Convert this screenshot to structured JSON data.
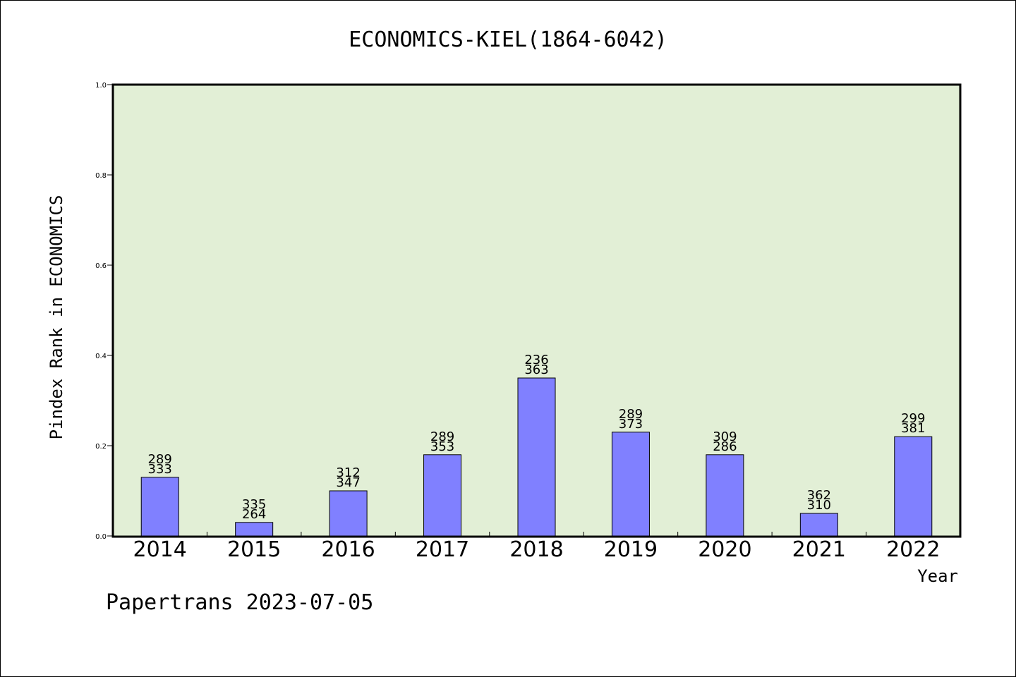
{
  "chart_data": {
    "type": "bar",
    "title": "ECONOMICS-KIEL(1864-6042)",
    "xlabel": "Year",
    "ylabel": "Pindex Rank in ECONOMICS",
    "ylim": [
      0,
      1.0
    ],
    "yticks": [
      "0.0",
      "0.2",
      "0.4",
      "0.6",
      "0.8",
      "1.0"
    ],
    "categories": [
      "2014",
      "2015",
      "2016",
      "2017",
      "2018",
      "2019",
      "2020",
      "2021",
      "2022"
    ],
    "values": [
      0.13,
      0.03,
      0.1,
      0.18,
      0.35,
      0.23,
      0.18,
      0.05,
      0.22
    ],
    "labels_top": [
      "289",
      "335",
      "312",
      "289",
      "236",
      "289",
      "309",
      "362",
      "299"
    ],
    "labels_bottom": [
      "333",
      "264",
      "347",
      "353",
      "363",
      "373",
      "286",
      "310",
      "381"
    ],
    "bar_color": "#8080ff",
    "plot_background": "#e2efd6",
    "grid": false,
    "footer": "Papertrans 2023-07-05"
  }
}
